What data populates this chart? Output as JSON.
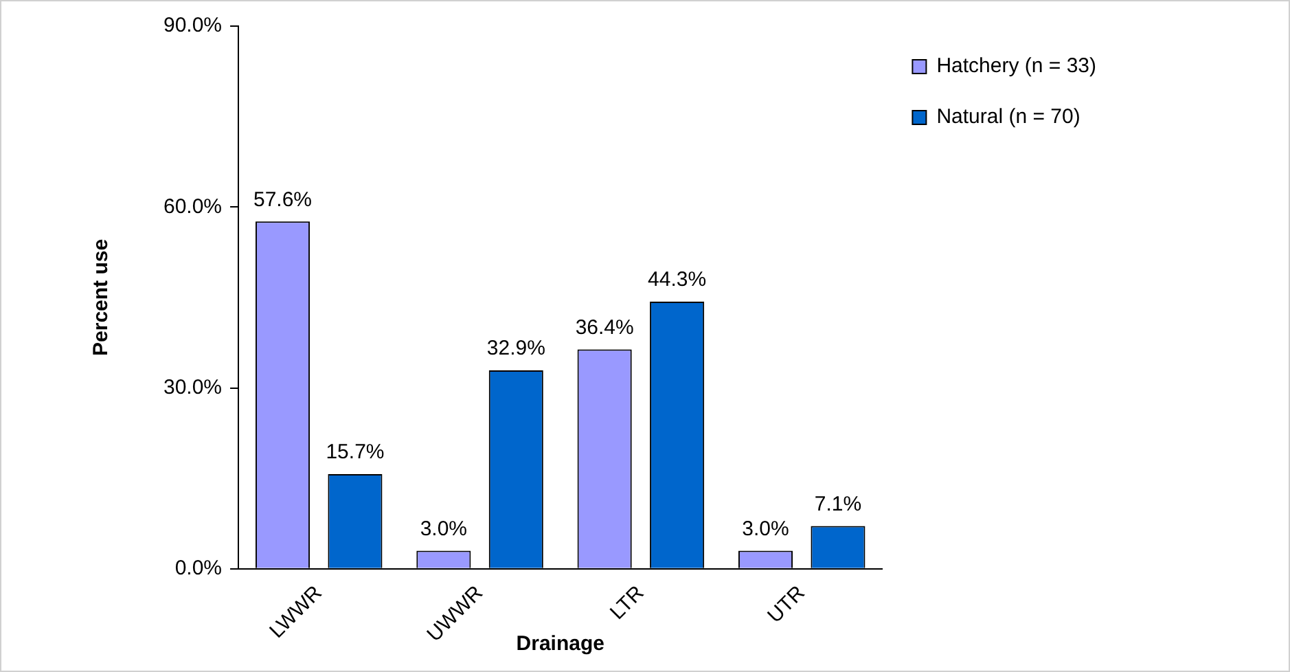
{
  "chart_data": {
    "type": "bar",
    "xlabel": "Drainage",
    "ylabel": "Percent use",
    "categories": [
      "LWWR",
      "UWWR",
      "LTR",
      "UTR"
    ],
    "series": [
      {
        "name": "Hatchery (n = 33)",
        "color": "#9999ff",
        "values": [
          57.6,
          3.0,
          36.4,
          3.0
        ],
        "value_labels": [
          "57.6%",
          "3.0%",
          "36.4%",
          "3.0%"
        ]
      },
      {
        "name": "Natural (n = 70)",
        "color": "#0066cc",
        "values": [
          15.7,
          32.9,
          44.3,
          7.1
        ],
        "value_labels": [
          "15.7%",
          "32.9%",
          "44.3%",
          "7.1%"
        ]
      }
    ],
    "ylim": [
      0,
      90
    ],
    "yticks": [
      {
        "value": 0,
        "label": "0.0%"
      },
      {
        "value": 30,
        "label": "30.0%"
      },
      {
        "value": 60,
        "label": "60.0%"
      },
      {
        "value": 90,
        "label": "90.0%"
      }
    ],
    "grid": false,
    "legend": "top right"
  }
}
